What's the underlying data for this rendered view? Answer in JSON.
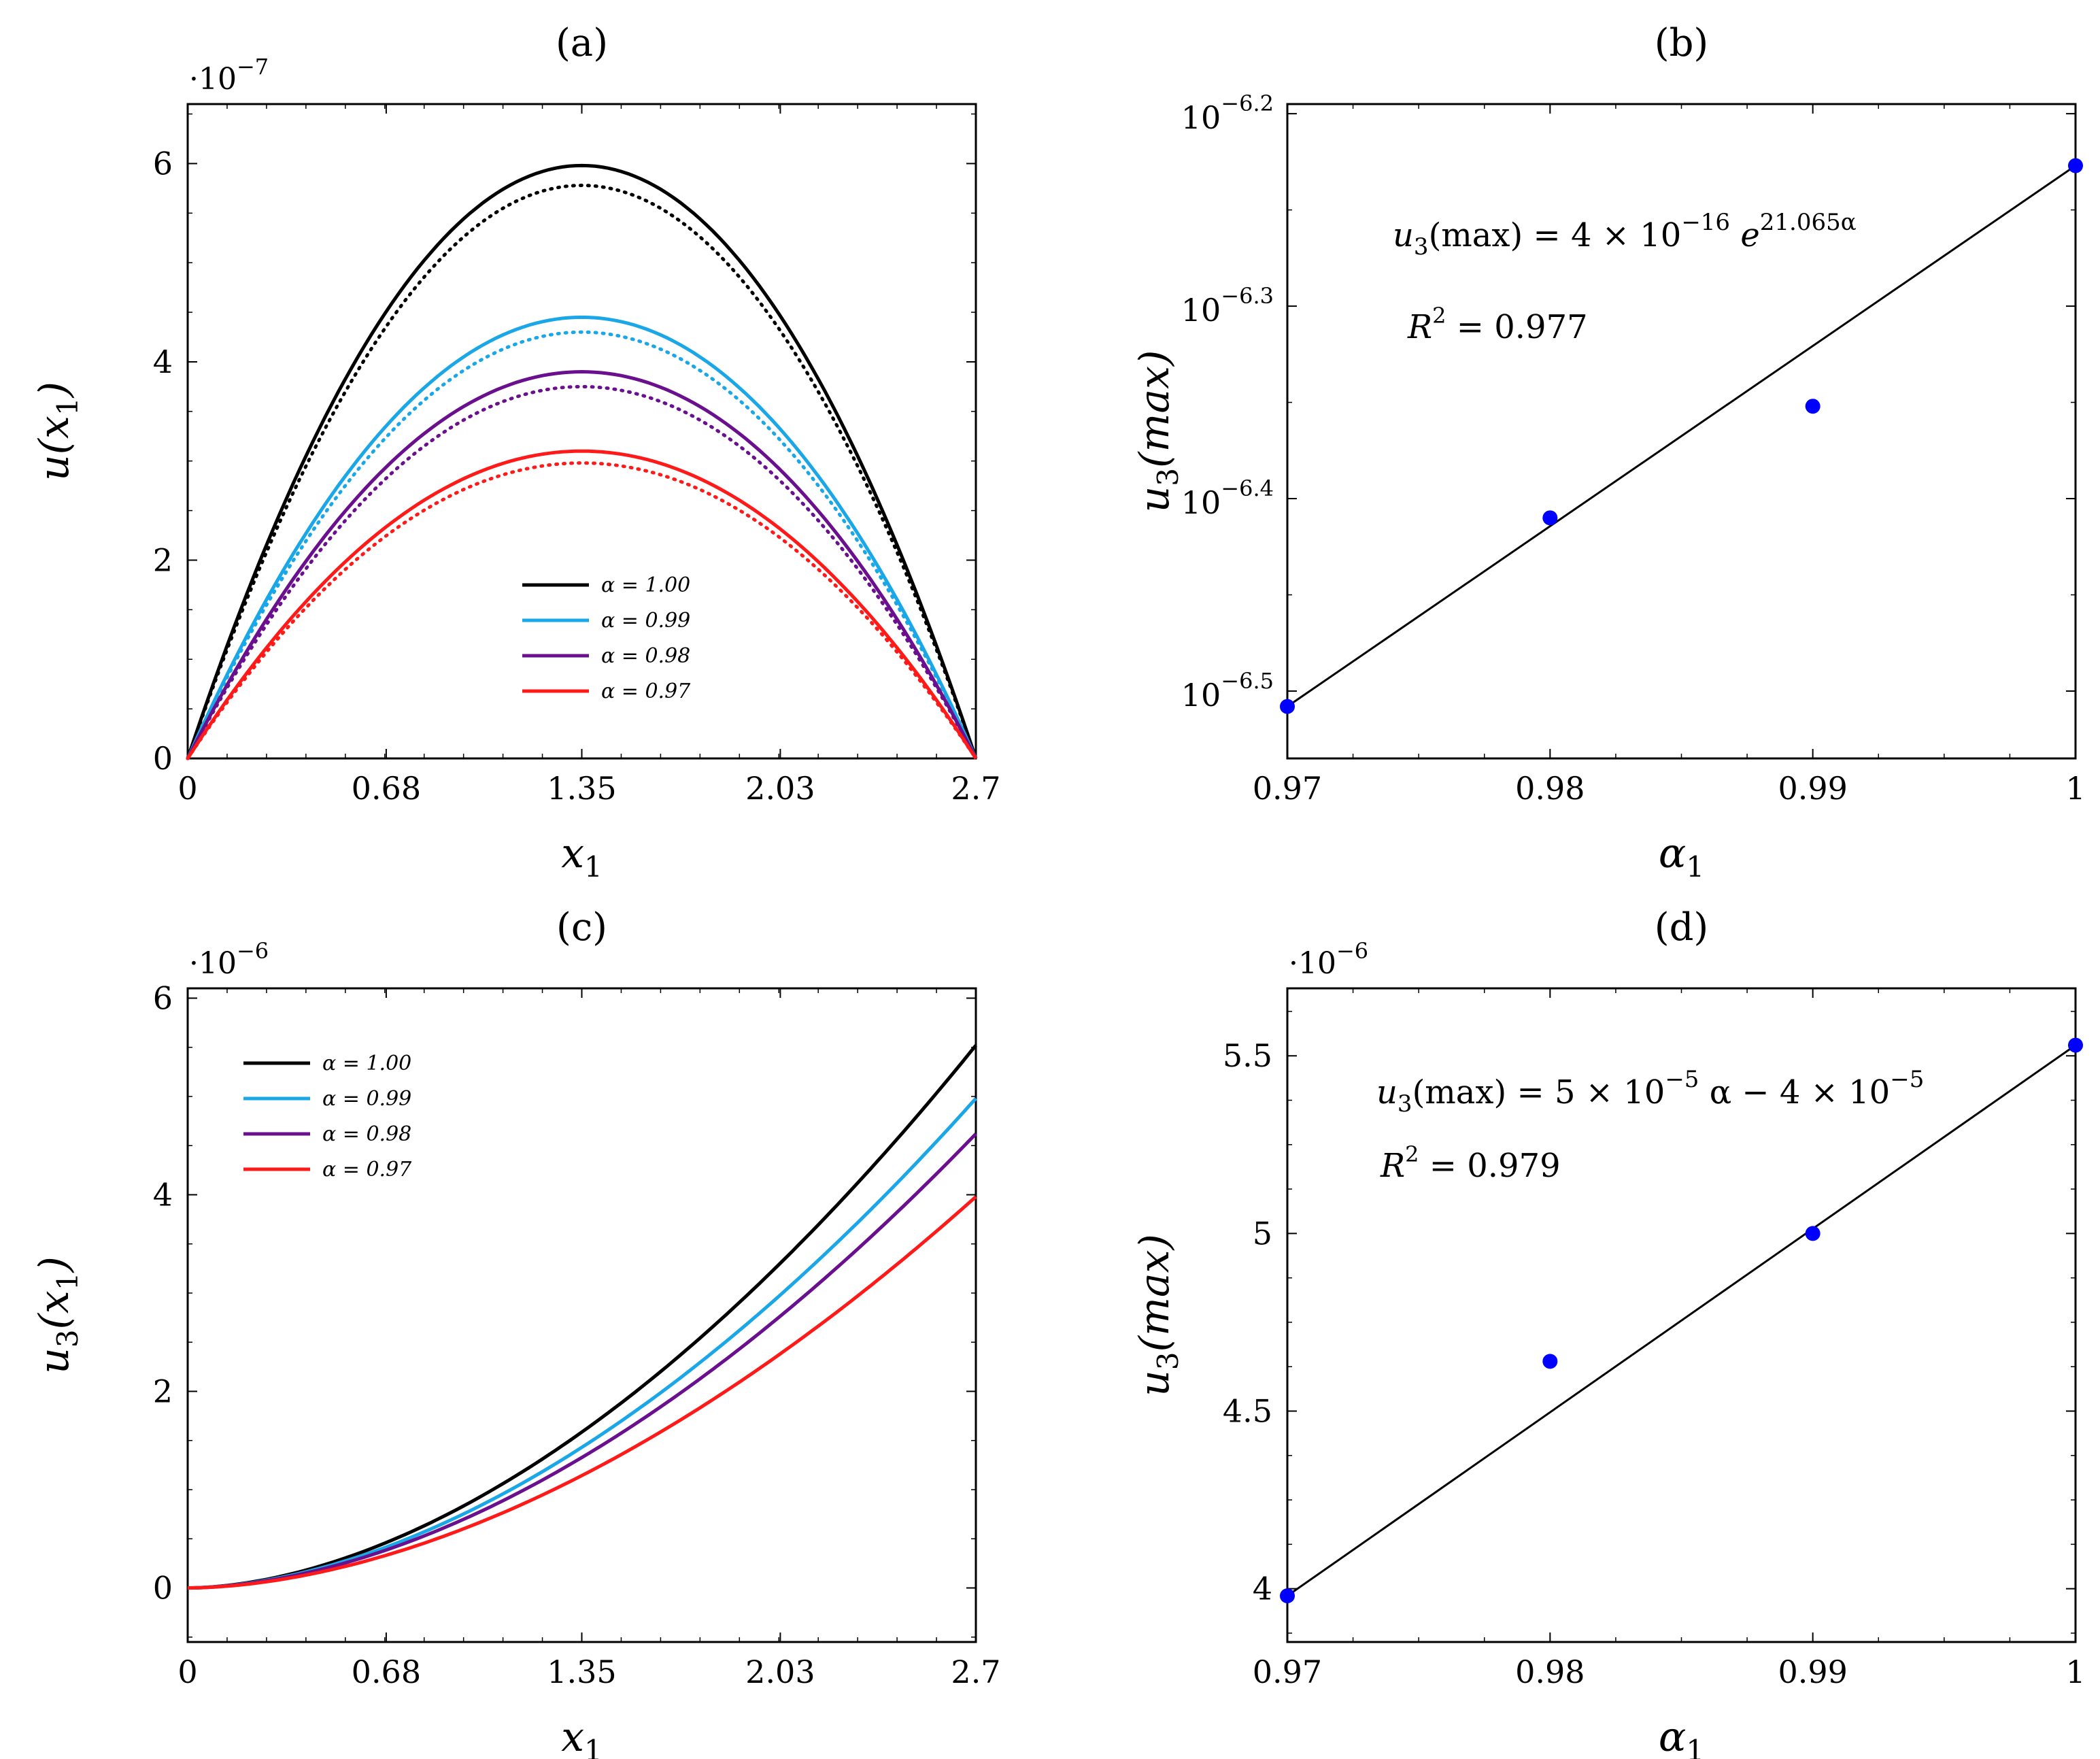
{
  "chart_data": [
    {
      "id": "a",
      "type": "line",
      "title": "(a)",
      "xlabel": "x_1",
      "ylabel": "u(x_1)",
      "y_multiplier": "·10^-7",
      "xlim": [
        0,
        2.7
      ],
      "ylim": [
        0,
        6.6
      ],
      "xticks": [
        0,
        0.68,
        1.35,
        2.03,
        2.7
      ],
      "xtick_labels": [
        "0",
        "0.68",
        "1.35",
        "2.03",
        "2.7"
      ],
      "yticks": [
        0,
        2,
        4,
        6
      ],
      "ytick_labels": [
        "0",
        "2",
        "4",
        "6"
      ],
      "curve_shape": "parabola",
      "legend_position": "center-bottom",
      "series": [
        {
          "name": "α = 1.00",
          "color": "#000000",
          "peak": 5.98,
          "dotted_peak": 5.78
        },
        {
          "name": "α = 0.99",
          "color": "#1aa7e8",
          "peak": 4.45,
          "dotted_peak": 4.3
        },
        {
          "name": "α = 0.98",
          "color": "#6a0f8e",
          "peak": 3.9,
          "dotted_peak": 3.75
        },
        {
          "name": "α = 0.97",
          "color": "#ff1a1a",
          "peak": 3.1,
          "dotted_peak": 2.98
        }
      ]
    },
    {
      "id": "b",
      "type": "scatter",
      "title": "(b)",
      "xlabel": "α_1",
      "ylabel": "u_3(max)",
      "yscale": "log10",
      "xlim": [
        0.97,
        1.0
      ],
      "ylim_log10": [
        -6.535,
        -6.195
      ],
      "xticks": [
        0.97,
        0.98,
        0.99,
        1.0
      ],
      "xtick_labels": [
        "0.97",
        "0.98",
        "0.99",
        "1"
      ],
      "yticks_log10": [
        -6.5,
        -6.4,
        -6.3,
        -6.2
      ],
      "ytick_labels": [
        "-6.5",
        "-6.4",
        "-6.3",
        "-6.2"
      ],
      "points": [
        {
          "x": 0.97,
          "log10y": -6.508
        },
        {
          "x": 0.98,
          "log10y": -6.41
        },
        {
          "x": 0.99,
          "log10y": -6.352
        },
        {
          "x": 1.0,
          "log10y": -6.227
        }
      ],
      "fit_line": [
        {
          "x": 0.97,
          "log10y": -6.508
        },
        {
          "x": 1.0,
          "log10y": -6.227
        }
      ],
      "point_color": "#0000ff",
      "equation_prefix": "u",
      "equation_prefix_sub": "3",
      "equation_mid": "(max) = 4 × 10",
      "equation_exp1": "−16",
      "equation_e": " e",
      "equation_exp2": "21.065α",
      "r2_label": "R",
      "r2_sup": "2",
      "r2_value": " = 0.977"
    },
    {
      "id": "c",
      "type": "line",
      "title": "(c)",
      "xlabel": "x_1",
      "ylabel": "u_3(x_1)",
      "y_multiplier": "·10^-6",
      "xlim": [
        0,
        2.7
      ],
      "ylim": [
        -0.55,
        6.1
      ],
      "xticks": [
        0,
        0.68,
        1.35,
        2.03,
        2.7
      ],
      "xtick_labels": [
        "0",
        "0.68",
        "1.35",
        "2.03",
        "2.7"
      ],
      "yticks": [
        0,
        2,
        4,
        6
      ],
      "ytick_labels": [
        "0",
        "2",
        "4",
        "6"
      ],
      "curve_shape": "power",
      "curve_exponent": 1.8,
      "legend_position": "top-left",
      "series": [
        {
          "name": "α = 1.00",
          "color": "#000000",
          "end": 5.52
        },
        {
          "name": "α = 0.99",
          "color": "#1aa7e8",
          "end": 4.98
        },
        {
          "name": "α = 0.98",
          "color": "#6a0f8e",
          "end": 4.62
        },
        {
          "name": "α = 0.97",
          "color": "#ff1a1a",
          "end": 3.98
        }
      ]
    },
    {
      "id": "d",
      "type": "scatter",
      "title": "(d)",
      "xlabel": "α_1",
      "ylabel": "u_3(max)",
      "y_multiplier": "·10^-6",
      "xlim": [
        0.97,
        1.0
      ],
      "ylim": [
        3.85,
        5.69
      ],
      "xticks": [
        0.97,
        0.98,
        0.99,
        1.0
      ],
      "xtick_labels": [
        "0.97",
        "0.98",
        "0.99",
        "1"
      ],
      "yticks": [
        4,
        4.5,
        5,
        5.5
      ],
      "ytick_labels": [
        "4",
        "4.5",
        "5",
        "5.5"
      ],
      "points": [
        {
          "x": 0.97,
          "y": 3.98
        },
        {
          "x": 0.98,
          "y": 4.64
        },
        {
          "x": 0.99,
          "y": 5.0
        },
        {
          "x": 1.0,
          "y": 5.53
        }
      ],
      "fit_line": [
        {
          "x": 0.97,
          "y": 3.98
        },
        {
          "x": 1.0,
          "y": 5.53
        }
      ],
      "point_color": "#0000ff",
      "equation_prefix": "u",
      "equation_prefix_sub": "3",
      "equation_mid": "(max) = 5 × 10",
      "equation_exp1": "−5",
      "equation_tail": " α − 4 × 10",
      "equation_exp2": "−5",
      "r2_label": "R",
      "r2_sup": "2",
      "r2_value": " = 0.979"
    }
  ]
}
